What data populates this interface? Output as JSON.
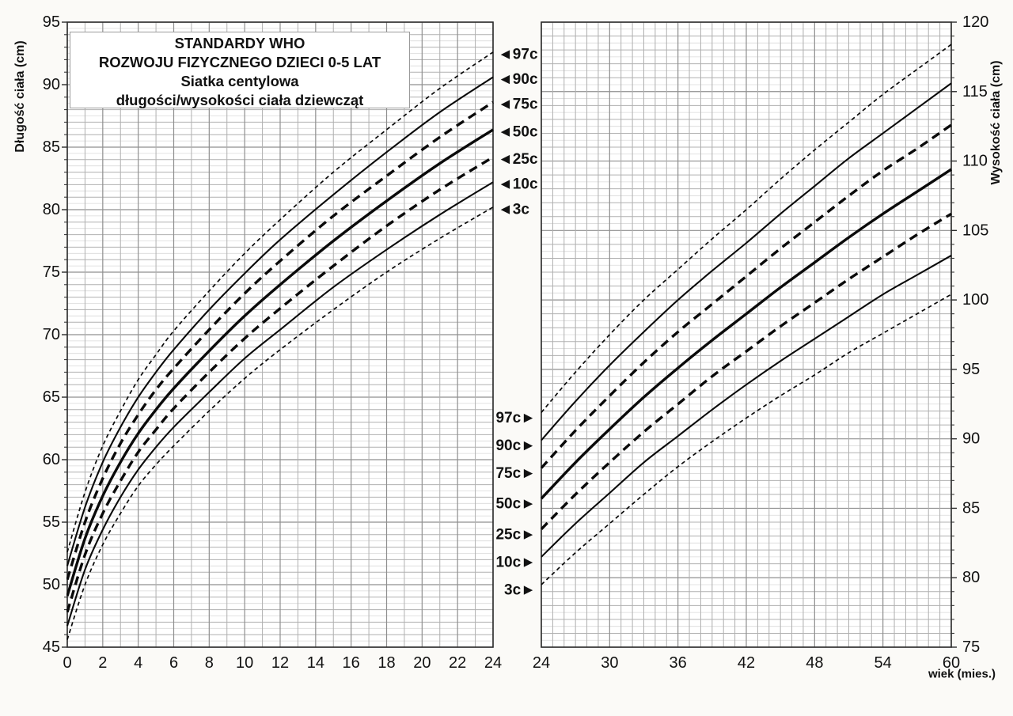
{
  "title_box": {
    "lines": [
      "STANDARDY WHO",
      "ROZWOJU FIZYCZNEGO DZIECI 0-5 LAT",
      "Siatka centylowa",
      "długości/wysokości ciała dziewcząt"
    ]
  },
  "markers": {
    "left_panel_pointer": "◄",
    "right_panel_pointer": "►"
  },
  "colors": {
    "curve": "#0a0a0a",
    "grid_minor": "#dadada",
    "grid_unit": "#b0b0b0",
    "grid_major": "#8f8f8f",
    "axis": "#2b2b2b",
    "plot_background": "#ffffff",
    "page_background": "#fbfaf7"
  },
  "chart_data": [
    {
      "type": "line",
      "panel": "left",
      "title": "STANDARDY WHO — Siatka centylowa długości/wysokości ciała dziewcząt (0-24 mies.)",
      "xlabel": "",
      "ylabel": "Długość ciała (cm)",
      "xlim": [
        0,
        24
      ],
      "ylim": [
        45,
        95
      ],
      "xticks": [
        0,
        2,
        4,
        6,
        8,
        10,
        12,
        14,
        16,
        18,
        20,
        22,
        24
      ],
      "yticks": [
        45,
        50,
        55,
        60,
        65,
        70,
        75,
        80,
        85,
        90,
        95
      ],
      "grid": "on",
      "y_axis_side": "left",
      "centile_label_side": "right",
      "x": [
        0,
        1,
        2,
        3,
        4,
        5,
        6,
        8,
        10,
        12,
        15,
        18,
        21,
        24
      ],
      "series": [
        {
          "name": "97c",
          "style": "dashed-fine",
          "values": [
            52.6,
            57.4,
            61.1,
            63.9,
            66.4,
            68.4,
            70.3,
            73.5,
            76.5,
            79.2,
            83.0,
            86.4,
            89.7,
            92.6
          ]
        },
        {
          "name": "90c",
          "style": "solid",
          "values": [
            51.5,
            56.2,
            59.8,
            62.6,
            65.0,
            67.0,
            68.8,
            72.0,
            74.9,
            77.6,
            81.2,
            84.6,
            87.8,
            90.6
          ]
        },
        {
          "name": "75c",
          "style": "dashed-bold",
          "values": [
            50.4,
            55.0,
            58.5,
            61.3,
            63.6,
            65.6,
            67.3,
            70.4,
            73.3,
            75.9,
            79.5,
            82.7,
            85.8,
            88.6
          ]
        },
        {
          "name": "50c",
          "style": "solid-bold",
          "values": [
            49.1,
            53.7,
            57.1,
            59.8,
            62.1,
            64.0,
            65.7,
            68.7,
            71.5,
            74.0,
            77.5,
            80.7,
            83.7,
            86.4
          ]
        },
        {
          "name": "25c",
          "style": "dashed-bold",
          "values": [
            47.8,
            52.4,
            55.7,
            58.3,
            60.6,
            62.4,
            64.1,
            67.0,
            69.7,
            72.1,
            75.5,
            78.7,
            81.6,
            84.2
          ]
        },
        {
          "name": "10c",
          "style": "solid",
          "values": [
            46.7,
            51.2,
            54.4,
            57.0,
            59.2,
            61.0,
            62.6,
            65.4,
            68.1,
            70.4,
            73.8,
            76.8,
            79.6,
            82.2
          ]
        },
        {
          "name": "3c",
          "style": "dashed-fine",
          "values": [
            45.6,
            50.0,
            53.2,
            55.7,
            57.9,
            59.6,
            61.1,
            63.9,
            66.5,
            68.8,
            72.0,
            75.0,
            77.7,
            80.2
          ]
        }
      ]
    },
    {
      "type": "line",
      "panel": "right",
      "title": "STANDARDY WHO — Siatka centylowa długości/wysokości ciała dziewcząt (24-60 mies.)",
      "xlabel": "wiek (mies.)",
      "ylabel": "Wysokość ciała (cm)",
      "xlim": [
        24,
        60
      ],
      "ylim": [
        75,
        120
      ],
      "xticks": [
        24,
        30,
        36,
        42,
        48,
        54,
        60
      ],
      "yticks": [
        75,
        80,
        85,
        90,
        95,
        100,
        105,
        110,
        115,
        120
      ],
      "grid": "on",
      "y_axis_side": "right",
      "centile_label_side": "left",
      "x": [
        24,
        27,
        30,
        33,
        36,
        39,
        42,
        45,
        48,
        51,
        54,
        57,
        60
      ],
      "series": [
        {
          "name": "97c",
          "style": "dashed-fine",
          "values": [
            91.9,
            94.8,
            97.5,
            100.0,
            102.2,
            104.4,
            106.5,
            108.7,
            110.8,
            112.8,
            114.8,
            116.6,
            118.4
          ]
        },
        {
          "name": "90c",
          "style": "solid",
          "values": [
            89.9,
            92.7,
            95.3,
            97.7,
            100.0,
            102.1,
            104.1,
            106.2,
            108.2,
            110.2,
            112.0,
            113.8,
            115.6
          ]
        },
        {
          "name": "75c",
          "style": "dashed-bold",
          "values": [
            87.9,
            90.6,
            93.1,
            95.5,
            97.7,
            99.7,
            101.7,
            103.7,
            105.6,
            107.5,
            109.3,
            110.9,
            112.6
          ]
        },
        {
          "name": "50c",
          "style": "solid-bold",
          "values": [
            85.7,
            88.3,
            90.7,
            93.0,
            95.1,
            97.1,
            99.0,
            100.9,
            102.7,
            104.5,
            106.2,
            107.8,
            109.4
          ]
        },
        {
          "name": "25c",
          "style": "dashed-bold",
          "values": [
            83.5,
            86.0,
            88.3,
            90.5,
            92.5,
            94.5,
            96.3,
            98.1,
            99.8,
            101.5,
            103.1,
            104.7,
            106.2
          ]
        },
        {
          "name": "10c",
          "style": "solid",
          "values": [
            81.5,
            83.9,
            86.1,
            88.3,
            90.2,
            92.1,
            93.9,
            95.6,
            97.2,
            98.8,
            100.4,
            101.8,
            103.2
          ]
        },
        {
          "name": "3c",
          "style": "dashed-fine",
          "values": [
            79.5,
            81.8,
            83.9,
            86.0,
            88.0,
            89.8,
            91.5,
            93.1,
            94.6,
            96.2,
            97.6,
            99.0,
            100.4
          ]
        }
      ]
    }
  ]
}
